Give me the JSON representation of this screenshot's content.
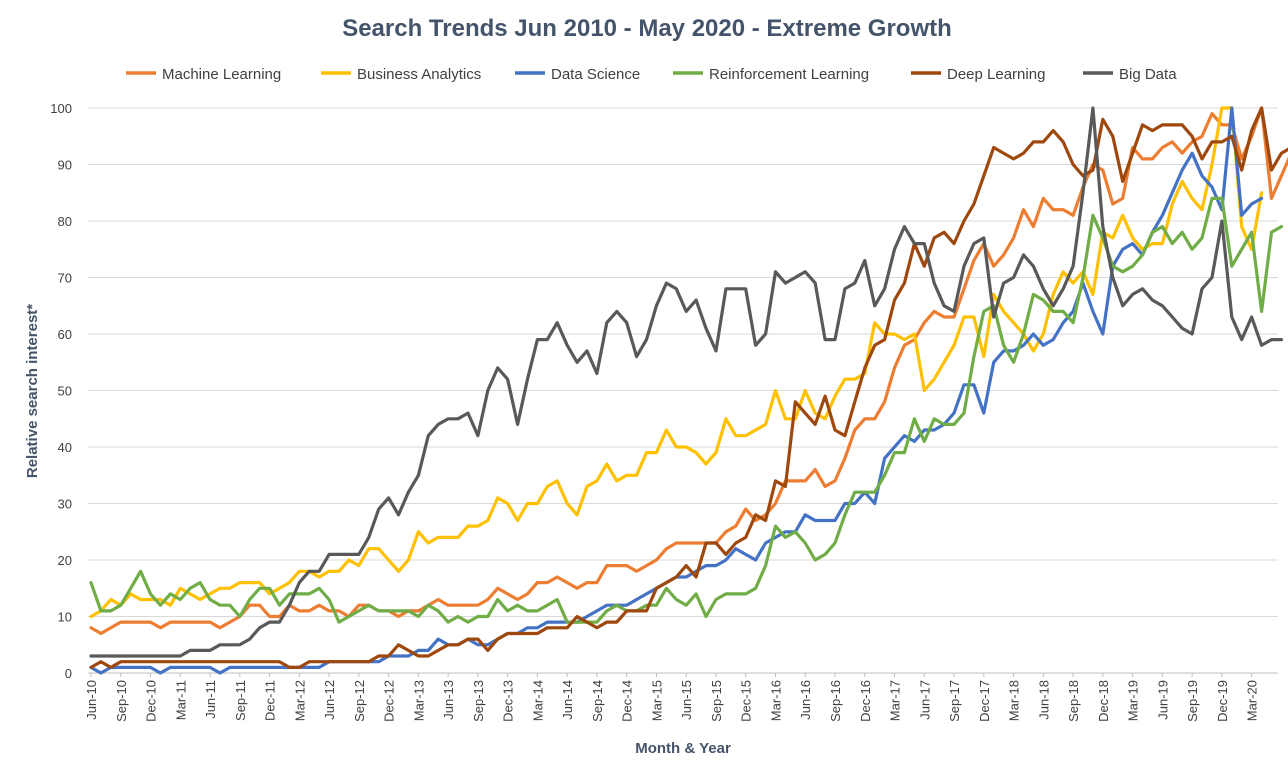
{
  "chart_data": {
    "type": "line",
    "title": "Search Trends Jun 2010 - May 2020 - Extreme Growth",
    "xlabel": "Month & Year",
    "ylabel": "Relative search interest*",
    "ylim": [
      0,
      100
    ],
    "y_ticks": [
      0,
      10,
      20,
      30,
      40,
      50,
      60,
      70,
      80,
      90,
      100
    ],
    "grid": true,
    "legend_position": "top",
    "x_start": "Jun-10",
    "x_tick_labels": [
      "Jun-10",
      "Sep-10",
      "Dec-10",
      "Mar-11",
      "Jun-11",
      "Sep-11",
      "Dec-11",
      "Mar-12",
      "Jun-12",
      "Sep-12",
      "Dec-12",
      "Mar-13",
      "Jun-13",
      "Sep-13",
      "Dec-13",
      "Mar-14",
      "Jun-14",
      "Sep-14",
      "Dec-14",
      "Mar-15",
      "Jun-15",
      "Sep-15",
      "Dec-15",
      "Mar-16",
      "Jun-16",
      "Sep-16",
      "Dec-16",
      "Mar-17",
      "Jun-17",
      "Sep-17",
      "Dec-17",
      "Mar-18",
      "Jun-18",
      "Sep-18",
      "Dec-18",
      "Mar-19",
      "Jun-19",
      "Sep-19",
      "Dec-19",
      "Mar-20"
    ],
    "series": [
      {
        "name": "Machine Learning",
        "color": "#ed7d31",
        "values": [
          8,
          7,
          8,
          9,
          9,
          9,
          9,
          8,
          9,
          9,
          9,
          9,
          9,
          8,
          9,
          10,
          12,
          12,
          10,
          10,
          12,
          11,
          11,
          12,
          11,
          11,
          10,
          12,
          12,
          11,
          11,
          10,
          11,
          11,
          12,
          13,
          12,
          12,
          12,
          12,
          13,
          15,
          14,
          13,
          14,
          16,
          16,
          17,
          16,
          15,
          16,
          16,
          19,
          19,
          19,
          18,
          19,
          20,
          22,
          23,
          23,
          23,
          23,
          23,
          25,
          26,
          29,
          27,
          28,
          30,
          34,
          34,
          34,
          36,
          33,
          34,
          38,
          43,
          45,
          45,
          48,
          54,
          58,
          59,
          62,
          64,
          63,
          63,
          68,
          73,
          76,
          72,
          74,
          77,
          82,
          79,
          84,
          82,
          82,
          81,
          86,
          90,
          89,
          83,
          84,
          93,
          91,
          91,
          93,
          94,
          92,
          94,
          95,
          99,
          97,
          97,
          91,
          95,
          100,
          84,
          88,
          92
        ]
      },
      {
        "name": "Business Analytics",
        "color": "#ffc000",
        "values": [
          10,
          11,
          13,
          12,
          14,
          13,
          13,
          13,
          12,
          15,
          14,
          13,
          14,
          15,
          15,
          16,
          16,
          16,
          14,
          15,
          16,
          18,
          18,
          17,
          18,
          18,
          20,
          19,
          22,
          22,
          20,
          18,
          20,
          25,
          23,
          24,
          24,
          24,
          26,
          26,
          27,
          31,
          30,
          27,
          30,
          30,
          33,
          34,
          30,
          28,
          33,
          34,
          37,
          34,
          35,
          35,
          39,
          39,
          43,
          40,
          40,
          39,
          37,
          39,
          45,
          42,
          42,
          43,
          44,
          50,
          45,
          45,
          50,
          46,
          45,
          49,
          52,
          52,
          53,
          62,
          60,
          60,
          59,
          60,
          50,
          52,
          55,
          58,
          63,
          63,
          56,
          67,
          64,
          62,
          60,
          57,
          60,
          67,
          71,
          69,
          71,
          67,
          78,
          77,
          81,
          77,
          75,
          76,
          76,
          83,
          87,
          84,
          82,
          90,
          100,
          100,
          79,
          75,
          85
        ]
      },
      {
        "name": "Data Science",
        "color": "#4472c4",
        "values": [
          1,
          0,
          1,
          1,
          1,
          1,
          1,
          0,
          1,
          1,
          1,
          1,
          1,
          0,
          1,
          1,
          1,
          1,
          1,
          1,
          1,
          1,
          1,
          1,
          2,
          2,
          2,
          2,
          2,
          2,
          3,
          3,
          3,
          4,
          4,
          6,
          5,
          5,
          6,
          5,
          5,
          6,
          7,
          7,
          8,
          8,
          9,
          9,
          9,
          9,
          10,
          11,
          12,
          12,
          12,
          13,
          14,
          15,
          16,
          17,
          17,
          18,
          19,
          19,
          20,
          22,
          21,
          20,
          23,
          24,
          25,
          25,
          28,
          27,
          27,
          27,
          30,
          30,
          32,
          30,
          38,
          40,
          42,
          41,
          43,
          43,
          44,
          46,
          51,
          51,
          46,
          55,
          57,
          57,
          58,
          60,
          58,
          59,
          62,
          64,
          69,
          64,
          60,
          72,
          75,
          76,
          74,
          78,
          81,
          85,
          89,
          92,
          88,
          86,
          82,
          100,
          81,
          83,
          84
        ]
      },
      {
        "name": "Reinforcement Learning",
        "color": "#70ad47",
        "values": [
          16,
          11,
          11,
          12,
          15,
          18,
          14,
          12,
          14,
          13,
          15,
          16,
          13,
          12,
          12,
          10,
          13,
          15,
          15,
          12,
          14,
          14,
          14,
          15,
          13,
          9,
          10,
          11,
          12,
          11,
          11,
          11,
          11,
          10,
          12,
          11,
          9,
          10,
          9,
          10,
          10,
          13,
          11,
          12,
          11,
          11,
          12,
          13,
          9,
          9,
          9,
          9,
          11,
          12,
          11,
          11,
          12,
          12,
          15,
          13,
          12,
          14,
          10,
          13,
          14,
          14,
          14,
          15,
          19,
          26,
          24,
          25,
          23,
          20,
          21,
          23,
          28,
          32,
          32,
          32,
          35,
          39,
          39,
          45,
          41,
          45,
          44,
          44,
          46,
          56,
          64,
          65,
          58,
          55,
          60,
          67,
          66,
          64,
          64,
          62,
          70,
          81,
          77,
          72,
          71,
          72,
          74,
          78,
          79,
          76,
          78,
          75,
          77,
          84,
          84,
          72,
          75,
          78,
          64,
          78,
          79
        ]
      },
      {
        "name": "Deep Learning",
        "color": "#9e480e",
        "values": [
          1,
          2,
          1,
          2,
          2,
          2,
          2,
          2,
          2,
          2,
          2,
          2,
          2,
          2,
          2,
          2,
          2,
          2,
          2,
          2,
          1,
          1,
          2,
          2,
          2,
          2,
          2,
          2,
          2,
          3,
          3,
          5,
          4,
          3,
          3,
          4,
          5,
          5,
          6,
          6,
          4,
          6,
          7,
          7,
          7,
          7,
          8,
          8,
          8,
          10,
          9,
          8,
          9,
          9,
          11,
          11,
          11,
          15,
          16,
          17,
          19,
          17,
          23,
          23,
          21,
          23,
          24,
          28,
          27,
          34,
          33,
          48,
          46,
          44,
          49,
          43,
          42,
          48,
          54,
          58,
          59,
          66,
          69,
          76,
          72,
          77,
          78,
          76,
          80,
          83,
          88,
          93,
          92,
          91,
          92,
          94,
          94,
          96,
          94,
          90,
          88,
          89,
          98,
          95,
          87,
          92,
          97,
          96,
          97,
          97,
          97,
          95,
          91,
          94,
          94,
          95,
          89,
          96,
          100,
          89,
          92,
          93
        ]
      },
      {
        "name": "Big Data",
        "color": "#595959",
        "values": [
          3,
          3,
          3,
          3,
          3,
          3,
          3,
          3,
          3,
          3,
          4,
          4,
          4,
          5,
          5,
          5,
          6,
          8,
          9,
          9,
          12,
          16,
          18,
          18,
          21,
          21,
          21,
          21,
          24,
          29,
          31,
          28,
          32,
          35,
          42,
          44,
          45,
          45,
          46,
          42,
          50,
          54,
          52,
          44,
          52,
          59,
          59,
          62,
          58,
          55,
          57,
          53,
          62,
          64,
          62,
          56,
          59,
          65,
          69,
          68,
          64,
          66,
          61,
          57,
          68,
          68,
          68,
          58,
          60,
          71,
          69,
          70,
          71,
          69,
          59,
          59,
          68,
          69,
          73,
          65,
          68,
          75,
          79,
          76,
          76,
          69,
          65,
          64,
          72,
          76,
          77,
          63,
          69,
          70,
          74,
          72,
          68,
          65,
          68,
          72,
          85,
          100,
          79,
          70,
          65,
          67,
          68,
          66,
          65,
          63,
          61,
          60,
          68,
          70,
          80,
          63,
          59,
          63,
          58,
          59,
          59
        ]
      }
    ]
  }
}
